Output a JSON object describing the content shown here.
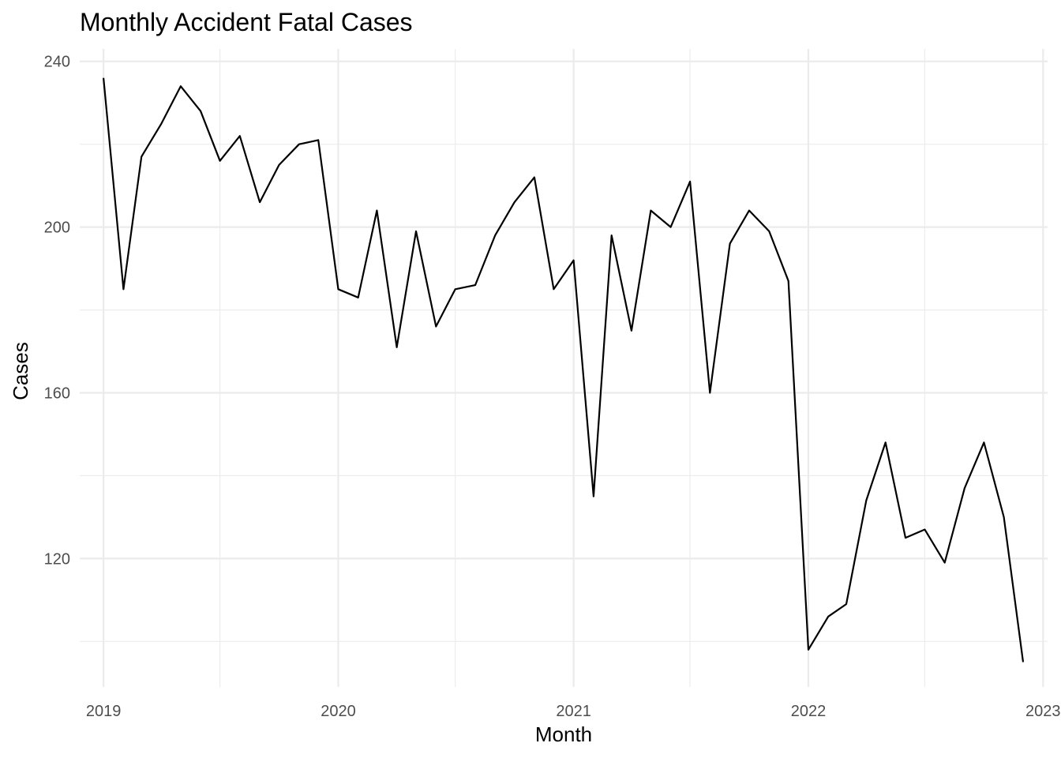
{
  "chart_data": {
    "type": "line",
    "title": "Monthly Accident Fatal Cases",
    "xlabel": "Month",
    "ylabel": "Cases",
    "x_ticks": [
      "2019",
      "2020",
      "2021",
      "2022",
      "2023"
    ],
    "y_ticks": [
      120,
      160,
      200,
      240
    ],
    "xlim": [
      "2018-11-25",
      "2023-01-08"
    ],
    "ylim": [
      89,
      243
    ],
    "grid": true,
    "line_color": "#000000",
    "x": [
      "2019-01",
      "2019-02",
      "2019-03",
      "2019-04",
      "2019-05",
      "2019-06",
      "2019-07",
      "2019-08",
      "2019-09",
      "2019-10",
      "2019-11",
      "2019-12",
      "2020-01",
      "2020-02",
      "2020-03",
      "2020-04",
      "2020-05",
      "2020-06",
      "2020-07",
      "2020-08",
      "2020-09",
      "2020-10",
      "2020-11",
      "2020-12",
      "2021-01",
      "2021-02",
      "2021-03",
      "2021-04",
      "2021-05",
      "2021-06",
      "2021-07",
      "2021-08",
      "2021-09",
      "2021-10",
      "2021-11",
      "2021-12",
      "2022-01",
      "2022-02",
      "2022-03",
      "2022-04",
      "2022-05",
      "2022-06",
      "2022-07",
      "2022-08",
      "2022-09",
      "2022-10",
      "2022-11",
      "2022-12"
    ],
    "values": [
      236,
      185,
      217,
      225,
      234,
      228,
      216,
      222,
      206,
      215,
      220,
      221,
      185,
      183,
      204,
      171,
      199,
      176,
      185,
      186,
      198,
      206,
      212,
      185,
      192,
      135,
      198,
      175,
      204,
      200,
      211,
      160,
      196,
      204,
      199,
      187,
      98,
      106,
      109,
      134,
      148,
      125,
      127,
      119,
      137,
      148,
      130,
      95
    ]
  }
}
